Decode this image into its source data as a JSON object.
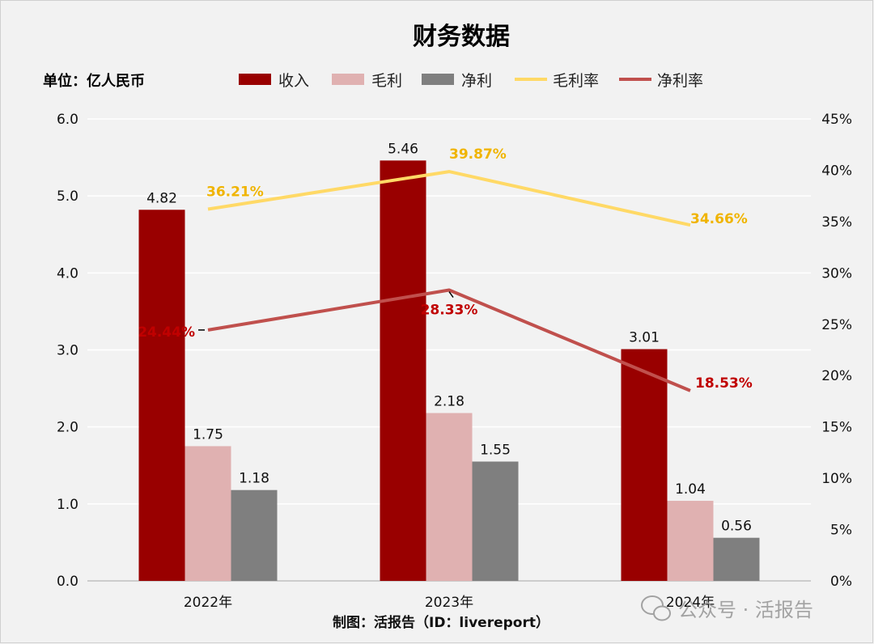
{
  "chart_data": {
    "type": "bar",
    "title": "财务数据",
    "unit_label": "单位：亿人民币",
    "categories": [
      "2022年",
      "2023年",
      "2024年"
    ],
    "left_axis": {
      "ylim": [
        0,
        6
      ],
      "ticks": [
        "0.0",
        "1.0",
        "2.0",
        "3.0",
        "4.0",
        "5.0",
        "6.0"
      ]
    },
    "right_axis": {
      "ylim": [
        0,
        45
      ],
      "ticks": [
        "0%",
        "5%",
        "10%",
        "15%",
        "20%",
        "25%",
        "30%",
        "35%",
        "40%",
        "45%"
      ]
    },
    "series": [
      {
        "name": "收入",
        "kind": "bar",
        "axis": "left",
        "color": "#990000",
        "values": [
          4.82,
          5.46,
          3.01
        ],
        "labels": [
          "4.82",
          "5.46",
          "3.01"
        ]
      },
      {
        "name": "毛利",
        "kind": "bar",
        "axis": "left",
        "color": "#e0b1b1",
        "values": [
          1.75,
          2.18,
          1.04
        ],
        "labels": [
          "1.75",
          "2.18",
          "1.04"
        ]
      },
      {
        "name": "净利",
        "kind": "bar",
        "axis": "left",
        "color": "#7f7f7f",
        "values": [
          1.18,
          1.55,
          0.56
        ],
        "labels": [
          "1.18",
          "1.55",
          "0.56"
        ]
      },
      {
        "name": "毛利率",
        "kind": "line",
        "axis": "right",
        "color": "#ffd966",
        "label_color": "#f0b400",
        "values": [
          36.21,
          39.87,
          34.66
        ],
        "labels": [
          "36.21%",
          "39.87%",
          "34.66%"
        ]
      },
      {
        "name": "净利率",
        "kind": "line",
        "axis": "right",
        "color": "#c0504d",
        "label_color": "#c00000",
        "values": [
          24.44,
          28.33,
          18.53
        ],
        "labels": [
          "24.44%",
          "28.33%",
          "18.53%"
        ]
      }
    ],
    "grid": true,
    "legend_position": "top-center"
  },
  "credit": "制图：活报告（ID：livereport）",
  "watermark": "公众号 · 活报告"
}
